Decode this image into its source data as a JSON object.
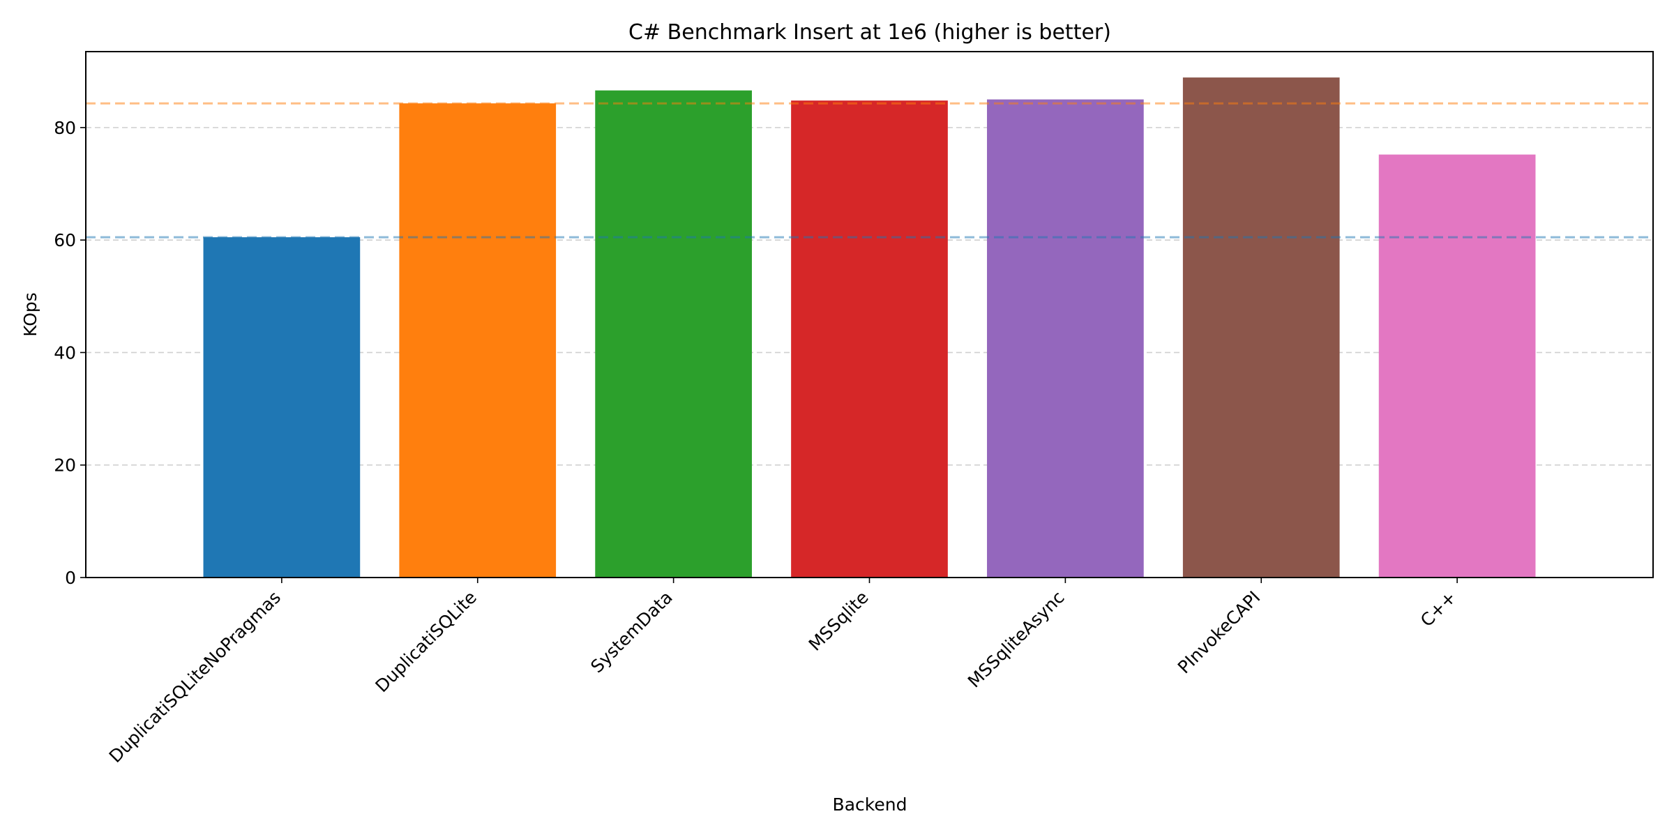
{
  "chart_data": {
    "type": "bar",
    "title": "C# Benchmark Insert at 1e6 (higher is better)",
    "xlabel": "Backend",
    "ylabel": "KOps",
    "categories": [
      "DuplicatiSQLiteNoPragmas",
      "DuplicatiSQLite",
      "SystemData",
      "MSSqlite",
      "MSSqliteAsync",
      "PInvokeCAPI",
      "C++"
    ],
    "values": [
      60.5,
      84.3,
      86.6,
      84.8,
      85.0,
      88.9,
      75.2
    ],
    "colors": [
      "#1f77b4",
      "#ff7f0e",
      "#2ca02c",
      "#d62728",
      "#9467bd",
      "#8c564b",
      "#e377c2"
    ],
    "ylim": [
      0,
      93.5
    ],
    "yticks": [
      0,
      20,
      40,
      60,
      80
    ],
    "reference_lines": [
      {
        "value": 60.5,
        "color": "#1f77b4"
      },
      {
        "value": 84.3,
        "color": "#ff7f0e"
      }
    ],
    "grid": "y-dashed",
    "legend": "none"
  }
}
